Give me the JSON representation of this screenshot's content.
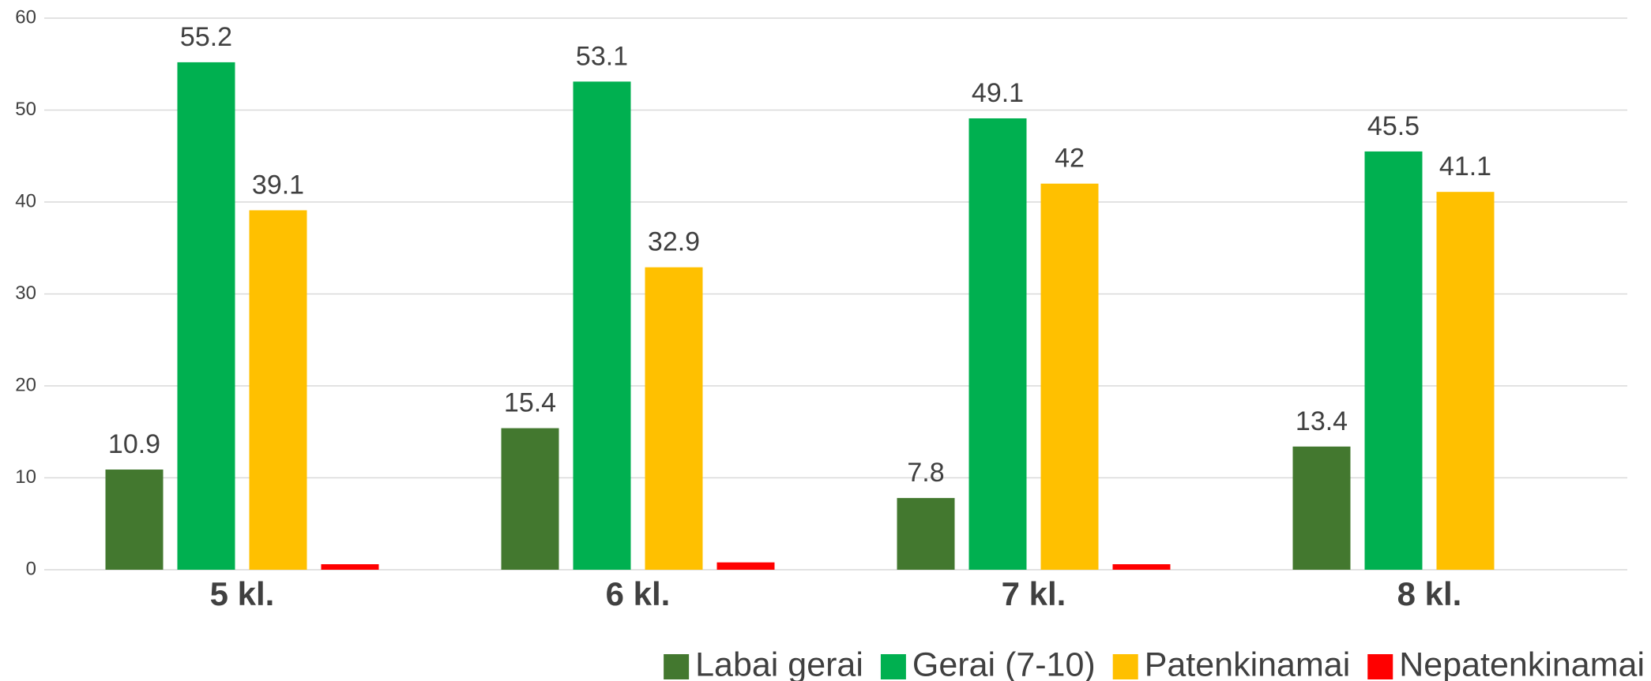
{
  "chart_data": {
    "type": "bar",
    "categories": [
      "5 kl.",
      "6 kl.",
      "7 kl.",
      "8 kl."
    ],
    "series": [
      {
        "name": "Labai gerai",
        "color": "#43782f",
        "values": [
          10.9,
          15.4,
          7.8,
          13.4
        ],
        "data_labels": true
      },
      {
        "name": "Gerai (7-10)",
        "color": "#00b050",
        "values": [
          55.2,
          53.1,
          49.1,
          45.5
        ],
        "data_labels": true
      },
      {
        "name": "Patenkinamai",
        "color": "#ffc000",
        "values": [
          39.1,
          32.9,
          42,
          41.1
        ],
        "data_labels": true
      },
      {
        "name": "Nepatenkinamai",
        "color": "#ff0000",
        "values": [
          0.6,
          0.8,
          0.6,
          null
        ],
        "data_labels": false
      }
    ],
    "ylim": [
      0,
      60
    ],
    "yticks": [
      0,
      10,
      20,
      30,
      40,
      50,
      60
    ],
    "grid": true,
    "legend": "bottom-right"
  }
}
